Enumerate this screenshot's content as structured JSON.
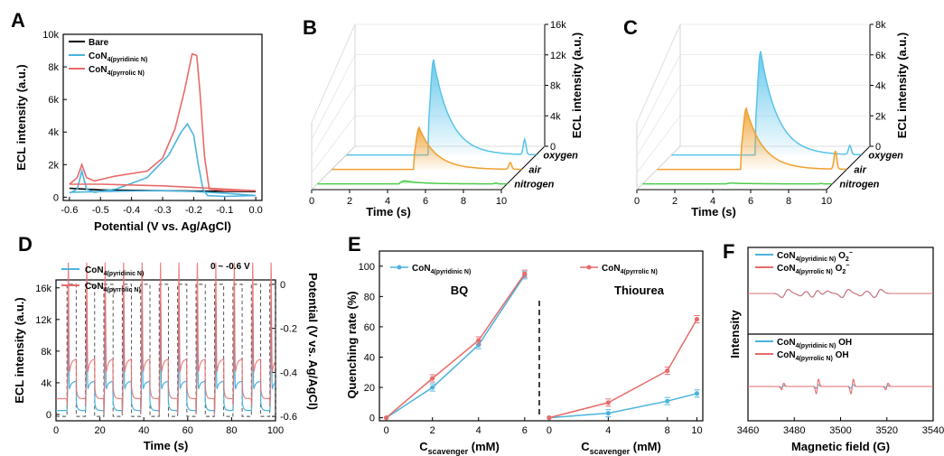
{
  "colors": {
    "bare": "#000000",
    "pyridinic": "#4bb3dd",
    "pyrrolic": "#e86a6a",
    "oxygen": "#59c3ea",
    "air": "#f0a030",
    "nitrogen": "#4dcc4d"
  },
  "panel_labels": [
    "A",
    "B",
    "C",
    "D",
    "E",
    "F"
  ],
  "chart_data": [
    {
      "id": "A",
      "type": "line",
      "title": "",
      "xlabel": "Potential (V vs. Ag/AgCl)",
      "ylabel": "ECL intensity (a.u.)",
      "xlim": [
        -0.62,
        0.02
      ],
      "ylim": [
        -200,
        10000
      ],
      "xticks": [
        "-0.6",
        "-0.5",
        "-0.4",
        "-0.3",
        "-0.2",
        "-0.1",
        "0.0"
      ],
      "yticks": [
        "0",
        "2k",
        "4k",
        "6k",
        "8k",
        "10k"
      ],
      "legend": [
        {
          "base": "Bare",
          "sub": ""
        },
        {
          "base": "CoN",
          "sub": "4(pyridinic N)"
        },
        {
          "base": "CoN",
          "sub": "4(pyrrolic N)"
        }
      ],
      "series": [
        {
          "name": "Bare",
          "x": [
            -0.6,
            -0.55,
            -0.5,
            -0.4,
            -0.3,
            -0.2,
            -0.1,
            0.0
          ],
          "y": [
            550,
            500,
            450,
            420,
            400,
            380,
            360,
            350
          ]
        },
        {
          "name": "CoN4(pyridinic N)",
          "x": [
            -0.6,
            -0.575,
            -0.56,
            -0.545,
            -0.52,
            -0.45,
            -0.35,
            -0.28,
            -0.24,
            -0.22,
            -0.2,
            -0.185,
            -0.17,
            -0.155,
            -0.1,
            0.0,
            -0.1,
            -0.2,
            -0.3,
            -0.4,
            -0.5,
            -0.55,
            -0.6
          ],
          "y": [
            250,
            500,
            1600,
            500,
            300,
            500,
            1200,
            2600,
            4000,
            4500,
            3800,
            2000,
            500,
            100,
            50,
            100,
            250,
            350,
            400,
            380,
            350,
            320,
            300
          ]
        },
        {
          "name": "CoN4(pyrrolic N)",
          "x": [
            -0.6,
            -0.575,
            -0.56,
            -0.545,
            -0.52,
            -0.45,
            -0.35,
            -0.3,
            -0.26,
            -0.23,
            -0.205,
            -0.19,
            -0.18,
            -0.165,
            -0.15,
            -0.1,
            0.0,
            -0.1,
            -0.2,
            -0.3,
            -0.4,
            -0.5,
            -0.6
          ],
          "y": [
            800,
            1200,
            2000,
            1200,
            1000,
            1300,
            1600,
            2400,
            4200,
            6500,
            8800,
            8700,
            6500,
            2500,
            500,
            400,
            400,
            500,
            600,
            700,
            750,
            800,
            800
          ]
        }
      ]
    },
    {
      "id": "B",
      "type": "line",
      "xlabel": "Time (s)",
      "ylabel": "ECL intensity (a.u.)",
      "xlim": [
        0,
        10
      ],
      "ylim": [
        0,
        16000
      ],
      "xticks": [
        "0",
        "2",
        "4",
        "6",
        "8",
        "10"
      ],
      "yticks": [
        "0",
        "4k",
        "8k",
        "12k",
        "16k"
      ],
      "series_labels": [
        "oxygen",
        "air",
        "nitrogen"
      ],
      "series": [
        {
          "name": "oxygen",
          "peak_time": 4.9,
          "peak": 12500,
          "small_time": 9.4,
          "small": 2000
        },
        {
          "name": "air",
          "peak_time": 4.9,
          "peak": 5500,
          "small_time": 9.4,
          "small": 900
        },
        {
          "name": "nitrogen",
          "peak_time": 4.9,
          "peak": 400,
          "small_time": 9.4,
          "small": 100
        }
      ]
    },
    {
      "id": "C",
      "type": "line",
      "xlabel": "Time (s)",
      "ylabel": "ECL intensity (a.u.)",
      "xlim": [
        0,
        10
      ],
      "ylim": [
        0,
        8000
      ],
      "xticks": [
        "0",
        "2",
        "4",
        "6",
        "8",
        "10"
      ],
      "yticks": [
        "0",
        "2k",
        "4k",
        "6k",
        "8k"
      ],
      "series_labels": [
        "oxygen",
        "air",
        "nitrogen"
      ],
      "series": [
        {
          "name": "oxygen",
          "peak_time": 5.0,
          "peak": 6800,
          "small_time": 9.4,
          "small": 600
        },
        {
          "name": "air",
          "peak_time": 5.0,
          "peak": 4000,
          "small_time": 9.4,
          "small": 1200
        },
        {
          "name": "nitrogen",
          "peak_time": 5.0,
          "peak": 50,
          "small_time": 9.4,
          "small": 20
        }
      ]
    },
    {
      "id": "D",
      "type": "line",
      "xlabel": "Time (s)",
      "ylabel": "ECL intensity (a.u.)",
      "y2label": "Potential (V vs. Ag/AgCl)",
      "annotation": "0 ~ -0.6 V",
      "xlim": [
        0,
        100
      ],
      "ylim": [
        -800,
        17000
      ],
      "y2lim": [
        -0.62,
        0.02
      ],
      "xticks": [
        "0",
        "20",
        "40",
        "60",
        "80",
        "100"
      ],
      "yticks": [
        "0",
        "4k",
        "8k",
        "12k",
        "16k"
      ],
      "y2ticks": [
        "0",
        "-0.2",
        "-0.4",
        "-0.6"
      ],
      "legend": [
        {
          "base": "CoN",
          "sub": "4(pyridinic N)"
        },
        {
          "base": "CoN",
          "sub": "4(pyrrolic N)"
        }
      ],
      "pulse_period": 8.4,
      "pulse_start": 5,
      "series": [
        {
          "name": "CoN4(pyridinic N)",
          "baseline": 500,
          "shoulder": 4200,
          "spike": 12000
        },
        {
          "name": "CoN4(pyrrolic N)",
          "baseline": 2000,
          "shoulder": 7000,
          "spike": 15500
        }
      ]
    },
    {
      "id": "E",
      "type": "line",
      "xlabel": "C",
      "xlabel_sub": "scavenger",
      "xlabel_unit": " (mM)",
      "ylabel": "Quenching rate (%)",
      "ylim": [
        -2,
        110
      ],
      "yticks": [
        "0",
        "20",
        "40",
        "60",
        "80",
        "100"
      ],
      "group_labels": [
        "BQ",
        "Thiourea"
      ],
      "legend": [
        {
          "base": "CoN",
          "sub": "4(pyridinic N)"
        },
        {
          "base": "CoN",
          "sub": "4(pyrrolic N)"
        }
      ],
      "left": {
        "xlim": [
          -0.3,
          6.4
        ],
        "xticks": [
          "0",
          "2",
          "4",
          "6"
        ],
        "series": [
          {
            "name": "CoN4(pyridinic N)",
            "x": [
              0,
              2,
              4,
              6
            ],
            "y": [
              0,
              20,
              48,
              94
            ]
          },
          {
            "name": "CoN4(pyrrolic N)",
            "x": [
              0,
              2,
              4,
              6
            ],
            "y": [
              0,
              26,
              51,
              95
            ]
          }
        ]
      },
      "right": {
        "xlim": [
          -0.3,
          10.4
        ],
        "xticks": [
          "0",
          "4",
          "8",
          "10"
        ],
        "xvals": [
          0,
          4,
          8,
          10
        ],
        "series": [
          {
            "name": "CoN4(pyridinic N)",
            "x": [
              0,
              4,
              8,
              10
            ],
            "y": [
              0,
              3,
              11,
              16
            ]
          },
          {
            "name": "CoN4(pyrrolic N)",
            "x": [
              0,
              4,
              8,
              10
            ],
            "y": [
              0,
              10,
              31,
              65
            ]
          }
        ]
      }
    },
    {
      "id": "F",
      "type": "line",
      "xlabel": "Magnetic field (G)",
      "ylabel": "Intensity",
      "xlim": [
        3460,
        3540
      ],
      "xticks": [
        "3460",
        "3480",
        "3500",
        "3520",
        "3540"
      ],
      "legend_top": [
        {
          "base": "CoN",
          "sub": "4(pyridinic N)",
          "tail": " O",
          "sup": "−",
          "sub2": "2"
        },
        {
          "base": "CoN",
          "sub": "4(pyrrolic N)",
          "tail": " O",
          "sup": "−",
          "sub2": "2"
        }
      ],
      "legend_bottom": [
        {
          "base": "CoN",
          "sub": "4(pyridinic N)",
          "tail": " OH"
        },
        {
          "base": "CoN",
          "sub": "4(pyrrolic N)",
          "tail": " OH"
        }
      ],
      "top_lines": [
        3476,
        3484,
        3489,
        3493,
        3502,
        3510,
        3516
      ],
      "bottom_lines": [
        3475,
        3490,
        3505,
        3520
      ]
    }
  ]
}
